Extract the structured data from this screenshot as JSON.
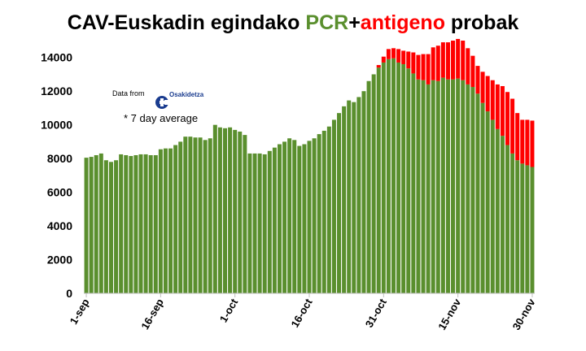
{
  "title": {
    "part1": "CAV-Euskadin egindako ",
    "part2": "PCR",
    "part3": "+",
    "part4": "antigeno",
    "part5": " probak"
  },
  "annotations": {
    "source_label": "Data from",
    "source_logo": "Osakidetza",
    "note": "* 7 day average"
  },
  "colors": {
    "pcr": "#5a8f2e",
    "antigen": "#ff0000",
    "pcr_title": "#5a8f2e",
    "antigen_title": "#ff0000"
  },
  "chart_data": {
    "type": "bar",
    "stacked": true,
    "title": "CAV-Euskadin egindako PCR+antigeno probak",
    "ylim": [
      0,
      15000
    ],
    "yticks": [
      0,
      2000,
      4000,
      6000,
      8000,
      10000,
      12000,
      14000
    ],
    "x_tick_labels": [
      "1-sep",
      "16-sep",
      "1-oct",
      "16-oct",
      "31-oct",
      "15-nov",
      "30-nov"
    ],
    "x_tick_indices": [
      0,
      15,
      30,
      45,
      60,
      75,
      90
    ],
    "grid": false,
    "legend": "none",
    "categories": [
      "1-sep",
      "2-sep",
      "3-sep",
      "4-sep",
      "5-sep",
      "6-sep",
      "7-sep",
      "8-sep",
      "9-sep",
      "10-sep",
      "11-sep",
      "12-sep",
      "13-sep",
      "14-sep",
      "15-sep",
      "16-sep",
      "17-sep",
      "18-sep",
      "19-sep",
      "20-sep",
      "21-sep",
      "22-sep",
      "23-sep",
      "24-sep",
      "25-sep",
      "26-sep",
      "27-sep",
      "28-sep",
      "29-sep",
      "30-sep",
      "1-oct",
      "2-oct",
      "3-oct",
      "4-oct",
      "5-oct",
      "6-oct",
      "7-oct",
      "8-oct",
      "9-oct",
      "10-oct",
      "11-oct",
      "12-oct",
      "13-oct",
      "14-oct",
      "15-oct",
      "16-oct",
      "17-oct",
      "18-oct",
      "19-oct",
      "20-oct",
      "21-oct",
      "22-oct",
      "23-oct",
      "24-oct",
      "25-oct",
      "26-oct",
      "27-oct",
      "28-oct",
      "29-oct",
      "30-oct",
      "31-oct",
      "1-nov",
      "2-nov",
      "3-nov",
      "4-nov",
      "5-nov",
      "6-nov",
      "7-nov",
      "8-nov",
      "9-nov",
      "10-nov",
      "11-nov",
      "12-nov",
      "13-nov",
      "14-nov",
      "15-nov",
      "16-nov",
      "17-nov",
      "18-nov",
      "19-nov",
      "20-nov",
      "21-nov",
      "22-nov",
      "23-nov",
      "24-nov",
      "25-nov",
      "26-nov",
      "27-nov",
      "28-nov",
      "29-nov",
      "30-nov"
    ],
    "series": [
      {
        "name": "PCR",
        "color": "#5a8f2e",
        "values": [
          8050,
          8100,
          8200,
          8300,
          7900,
          7800,
          7900,
          8250,
          8200,
          8150,
          8200,
          8250,
          8250,
          8200,
          8200,
          8550,
          8600,
          8600,
          8800,
          9000,
          9300,
          9300,
          9250,
          9250,
          9100,
          9200,
          10000,
          9850,
          9800,
          9850,
          9700,
          9600,
          9400,
          8300,
          8300,
          8300,
          8250,
          8450,
          8650,
          8850,
          9000,
          9200,
          9100,
          8750,
          8850,
          9050,
          9200,
          9450,
          9650,
          9900,
          10300,
          10700,
          11100,
          11450,
          11350,
          11650,
          12000,
          12600,
          13000,
          13400,
          13700,
          13900,
          13950,
          13700,
          13600,
          13350,
          13050,
          12700,
          12650,
          12400,
          12650,
          12600,
          12800,
          12700,
          12700,
          12750,
          12650,
          12400,
          12250,
          11850,
          11300,
          10800,
          10300,
          9750,
          9350,
          8800,
          8300,
          7900,
          7700,
          7600,
          7500
        ]
      },
      {
        "name": "antigeno",
        "color": "#ff0000",
        "values": [
          0,
          0,
          0,
          0,
          0,
          0,
          0,
          0,
          0,
          0,
          0,
          0,
          0,
          0,
          0,
          0,
          0,
          0,
          0,
          0,
          0,
          0,
          0,
          0,
          0,
          0,
          0,
          0,
          0,
          0,
          0,
          0,
          0,
          0,
          0,
          0,
          0,
          0,
          0,
          0,
          0,
          0,
          0,
          0,
          0,
          0,
          0,
          0,
          0,
          0,
          0,
          0,
          0,
          0,
          0,
          0,
          0,
          0,
          0,
          150,
          350,
          600,
          600,
          800,
          800,
          1000,
          1250,
          1450,
          1550,
          1800,
          1950,
          2100,
          2100,
          2200,
          2300,
          2350,
          2350,
          2150,
          1850,
          1650,
          1850,
          2100,
          2350,
          2650,
          2950,
          3150,
          3250,
          2800,
          2600,
          2700,
          2750
        ]
      }
    ]
  }
}
